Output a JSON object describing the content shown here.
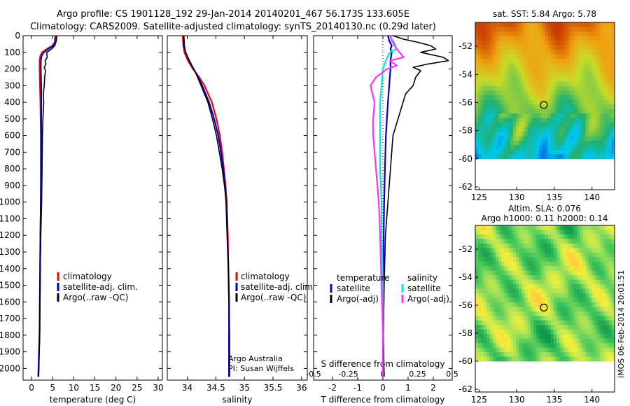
{
  "header": {
    "title_line1": "Argo profile: CS 1901128_192 29-Jan-2014 20140201_467 56.173S 133.605E",
    "title_line2": "Climatology: CARS2009. Satellite-adjusted climatology: synTS_20140130.nc (0.29d later)"
  },
  "colors": {
    "climatology": "#ff0000",
    "satellite": "#0000cc",
    "argo": "#000000",
    "sal_satellite": "#00e5e5",
    "sal_argo": "#ff33ff"
  },
  "chart_data": [
    {
      "type": "line",
      "id": "temperature",
      "xlabel": "temperature (deg C)",
      "ylabel": "",
      "xlim": [
        -2,
        31
      ],
      "ylim": [
        2070,
        0
      ],
      "xticks": [
        0,
        5,
        10,
        15,
        20,
        25,
        30
      ],
      "xtick_labels": [
        "0",
        "5",
        "10",
        "15",
        "20",
        "25",
        "30"
      ],
      "yticks": [
        0,
        100,
        200,
        300,
        400,
        500,
        600,
        700,
        800,
        900,
        1000,
        1100,
        1200,
        1300,
        1400,
        1500,
        1600,
        1700,
        1800,
        1900,
        2000
      ],
      "ytick_labels": [
        "0",
        "100",
        "200",
        "300",
        "400",
        "500",
        "600",
        "700",
        "800",
        "900",
        "1000",
        "1100",
        "1200",
        "1300",
        "1400",
        "1500",
        "1600",
        "1700",
        "1800",
        "1900",
        "2000"
      ],
      "legend": [
        "climatology",
        "satellite-adj. clim.",
        "Argo(..raw -QC)"
      ],
      "legend_position": "bottom-left",
      "series": [
        {
          "name": "climatology",
          "color": "#ff0000",
          "depth": [
            0,
            40,
            60,
            80,
            100,
            120,
            150,
            200,
            300,
            400,
            600,
            800,
            1000,
            1200,
            1500,
            1800,
            2050
          ],
          "values": [
            5.6,
            5.5,
            4.9,
            3.6,
            2.5,
            2.1,
            1.9,
            1.9,
            2.0,
            2.1,
            2.2,
            2.2,
            2.2,
            2.1,
            2.0,
            1.9,
            1.6
          ]
        },
        {
          "name": "satellite-adj. clim.",
          "color": "#0000cc",
          "depth": [
            0,
            40,
            60,
            80,
            100,
            120,
            150,
            200,
            300,
            400,
            600,
            800,
            1000,
            1200,
            1500,
            1800,
            2050
          ],
          "values": [
            5.8,
            5.7,
            5.1,
            4.0,
            2.9,
            2.4,
            2.2,
            2.2,
            2.3,
            2.3,
            2.3,
            2.3,
            2.2,
            2.1,
            2.0,
            1.9,
            1.6
          ]
        },
        {
          "name": "Argo(..raw -QC)",
          "color": "#000000",
          "depth": [
            0,
            30,
            60,
            80,
            90,
            100,
            130,
            150,
            170,
            190,
            210,
            250,
            300,
            350,
            400,
            450,
            500,
            600,
            800,
            1000,
            1200,
            1500,
            1800,
            2050
          ],
          "values": [
            6.0,
            5.9,
            5.5,
            4.7,
            4.2,
            3.6,
            3.7,
            3.2,
            3.4,
            3.0,
            3.3,
            3.1,
            3.0,
            2.8,
            2.9,
            2.8,
            2.7,
            2.6,
            2.5,
            2.4,
            2.2,
            2.0,
            1.9,
            1.7
          ]
        }
      ]
    },
    {
      "type": "line",
      "id": "salinity",
      "xlabel": "salinity",
      "ylabel": "",
      "xlim": [
        33.65,
        36.1
      ],
      "ylim": [
        2070,
        0
      ],
      "xticks": [
        34,
        34.5,
        35,
        35.5,
        36
      ],
      "xtick_labels": [
        "34",
        "34.5",
        "35",
        "35.5",
        "36"
      ],
      "legend": [
        "climatology",
        "satellite-adj. clim.",
        "Argo(..raw -QC)"
      ],
      "legend_position": "bottom-right",
      "annotations": [
        "Argo Australia",
        "PI: Susan Wijffels"
      ],
      "series": [
        {
          "name": "climatology",
          "color": "#ff0000",
          "depth": [
            0,
            60,
            100,
            150,
            200,
            250,
            300,
            400,
            500,
            600,
            700,
            800,
            900,
            1000,
            1200,
            1400,
            1600,
            1800,
            2050
          ],
          "values": [
            33.92,
            33.93,
            33.95,
            34.01,
            34.1,
            34.21,
            34.3,
            34.43,
            34.51,
            34.57,
            34.61,
            34.64,
            34.67,
            34.69,
            34.71,
            34.72,
            34.73,
            34.73,
            34.73
          ]
        },
        {
          "name": "satellite-adj. clim.",
          "color": "#0000cc",
          "depth": [
            0,
            60,
            100,
            150,
            200,
            250,
            300,
            400,
            500,
            600,
            700,
            800,
            900,
            1000,
            1200,
            1400,
            1600,
            1800,
            2050
          ],
          "values": [
            33.93,
            33.94,
            33.97,
            34.03,
            34.11,
            34.19,
            34.26,
            34.38,
            34.47,
            34.54,
            34.59,
            34.63,
            34.66,
            34.68,
            34.7,
            34.72,
            34.73,
            34.73,
            34.73
          ]
        },
        {
          "name": "Argo(..raw -QC)",
          "color": "#000000",
          "depth": [
            0,
            60,
            100,
            150,
            200,
            250,
            300,
            400,
            500,
            600,
            700,
            800,
            900,
            1000,
            1200,
            1400,
            1600,
            1800,
            2050
          ],
          "values": [
            33.94,
            33.95,
            33.97,
            34.04,
            34.11,
            34.18,
            34.24,
            34.36,
            34.44,
            34.51,
            34.56,
            34.61,
            34.65,
            34.68,
            34.7,
            34.72,
            34.73,
            34.74,
            34.74
          ]
        }
      ]
    },
    {
      "type": "line",
      "id": "differences",
      "xlabel": "T difference from climatology",
      "top_axis_label": "S difference from climatology",
      "xlim": [
        -2.75,
        2.75
      ],
      "ylim": [
        2070,
        0
      ],
      "xticks": [
        -2,
        -1,
        0,
        1,
        2
      ],
      "xtick_labels": [
        "-2",
        "-1",
        "0",
        "1",
        "2"
      ],
      "s_ticks": [
        -0.5,
        -0.25,
        0,
        0.25,
        0.5
      ],
      "s_tick_labels": [
        "-0.5",
        "-0.25",
        "0",
        "0.25",
        "0.5"
      ],
      "legend_left_title": "temperature",
      "legend_right_title": "salinity",
      "legend_left": [
        "satellite",
        "Argo(-adj)"
      ],
      "legend_right": [
        "satellite",
        "Argo(-adj)"
      ],
      "legend_position": "middle",
      "series": [
        {
          "name": "T satellite",
          "color": "#0000cc",
          "depth": [
            0,
            30,
            60,
            80,
            100,
            150,
            200,
            300,
            400,
            600,
            800,
            1000,
            1200,
            1500,
            1800,
            2050
          ],
          "values": [
            0.2,
            0.25,
            0.35,
            0.3,
            0.35,
            0.3,
            0.3,
            0.25,
            0.2,
            0.12,
            0.08,
            0.05,
            0.03,
            0.02,
            0.01,
            0.0
          ]
        },
        {
          "name": "T Argo(-adj)",
          "color": "#000000",
          "depth": [
            0,
            20,
            40,
            60,
            80,
            100,
            130,
            150,
            170,
            190,
            210,
            250,
            300,
            350,
            400,
            450,
            500,
            600,
            800,
            1000,
            1200,
            1500,
            1800,
            2050
          ],
          "values": [
            0.4,
            0.8,
            1.4,
            1.9,
            2.1,
            1.5,
            2.4,
            2.6,
            1.8,
            1.2,
            1.5,
            1.3,
            1.2,
            0.9,
            0.8,
            0.7,
            0.6,
            0.4,
            0.3,
            0.2,
            0.1,
            0.05,
            0.02,
            0.05
          ]
        },
        {
          "name": "S satellite",
          "color": "#00e5e5",
          "depth": [
            0,
            40,
            80,
            100,
            150,
            200,
            300,
            400,
            500,
            600,
            800,
            1000,
            1200,
            1500,
            1800,
            2050
          ],
          "values": [
            0.05,
            0.08,
            0.1,
            0.05,
            0.02,
            0.0,
            -0.01,
            -0.02,
            -0.02,
            -0.02,
            -0.02,
            -0.01,
            -0.01,
            0.0,
            0.0,
            0.0
          ]
        },
        {
          "name": "S Argo(-adj)",
          "color": "#ff33ff",
          "depth": [
            0,
            40,
            80,
            100,
            130,
            150,
            180,
            200,
            250,
            300,
            400,
            500,
            600,
            700,
            800,
            900,
            1000,
            1200,
            1500,
            1800,
            2050
          ],
          "values": [
            0.05,
            0.07,
            0.1,
            0.12,
            0.15,
            0.05,
            0.1,
            0.03,
            -0.05,
            -0.09,
            -0.06,
            -0.07,
            -0.07,
            -0.06,
            -0.05,
            -0.04,
            -0.03,
            -0.02,
            -0.01,
            0.0,
            0.0
          ]
        }
      ]
    },
    {
      "type": "heatmap",
      "id": "sst_map",
      "title": "sat. SST: 5.84  Argo: 5.78",
      "xlim": [
        124.5,
        143
      ],
      "ylim": [
        -62.2,
        -50.3
      ],
      "xticks": [
        125,
        130,
        135,
        140
      ],
      "xtick_labels": [
        "125",
        "130",
        "135",
        "140"
      ],
      "yticks": [
        -52,
        -54,
        -56,
        -58,
        -60,
        -62
      ],
      "ytick_labels": [
        "-52",
        "-54",
        "-56",
        "-58",
        "-60",
        "-62"
      ],
      "data_extent_lat": [
        -60,
        -50.3
      ],
      "marker": {
        "lon": 133.6,
        "lat": -56.17
      },
      "colorscale": [
        "#0000c8",
        "#00c8f0",
        "#20b070",
        "#c8dc28",
        "#f0a010",
        "#c83c00"
      ]
    },
    {
      "type": "heatmap",
      "id": "sla_map",
      "title": "Altim. SLA: 0.076",
      "subtitle": "Argo h1000: 0.11 h2000: 0.14",
      "xlim": [
        124.5,
        143
      ],
      "ylim": [
        -62.2,
        -50.3
      ],
      "xticks": [
        125,
        130,
        135,
        140
      ],
      "xtick_labels": [
        "125",
        "130",
        "135",
        "140"
      ],
      "yticks": [
        -52,
        -54,
        -56,
        -58,
        -60,
        -62
      ],
      "ytick_labels": [
        "-52",
        "-54",
        "-56",
        "-58",
        "-60",
        "-62"
      ],
      "data_extent_lat": [
        -60,
        -50.3
      ],
      "marker": {
        "lon": 133.6,
        "lat": -56.17
      },
      "colorscale": [
        "#14964b",
        "#3cc35a",
        "#a0e15a",
        "#f0f03c",
        "#ffc83c"
      ]
    }
  ],
  "footer": {
    "timestamp_label": "IMOS 06-Feb-2014 20:01:51"
  }
}
